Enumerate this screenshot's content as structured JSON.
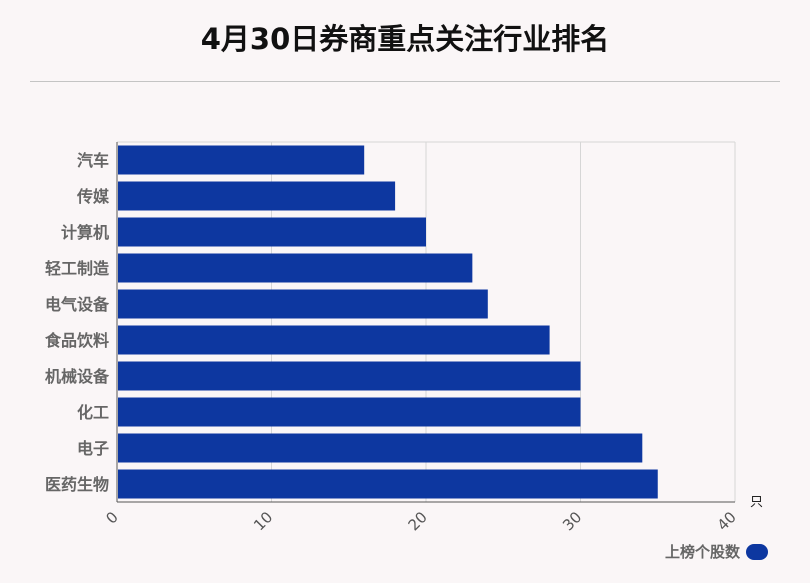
{
  "chart_data": {
    "type": "bar",
    "orientation": "horizontal",
    "title": "4月30日券商重点关注行业排名",
    "categories": [
      "汽车",
      "传媒",
      "计算机",
      "轻工制造",
      "电气设备",
      "食品饮料",
      "机械设备",
      "化工",
      "电子",
      "医药生物"
    ],
    "series": [
      {
        "name": "上榜个股数",
        "values": [
          16,
          18,
          20,
          23,
          24,
          28,
          30,
          30,
          34,
          35
        ]
      }
    ],
    "xlim": [
      0,
      40
    ],
    "x_ticks": [
      "0",
      "10",
      "20",
      "30",
      "40"
    ],
    "x_unit": "只",
    "grid": true,
    "legend_position": "bottom-right",
    "bar_color": "#0d37a0"
  }
}
